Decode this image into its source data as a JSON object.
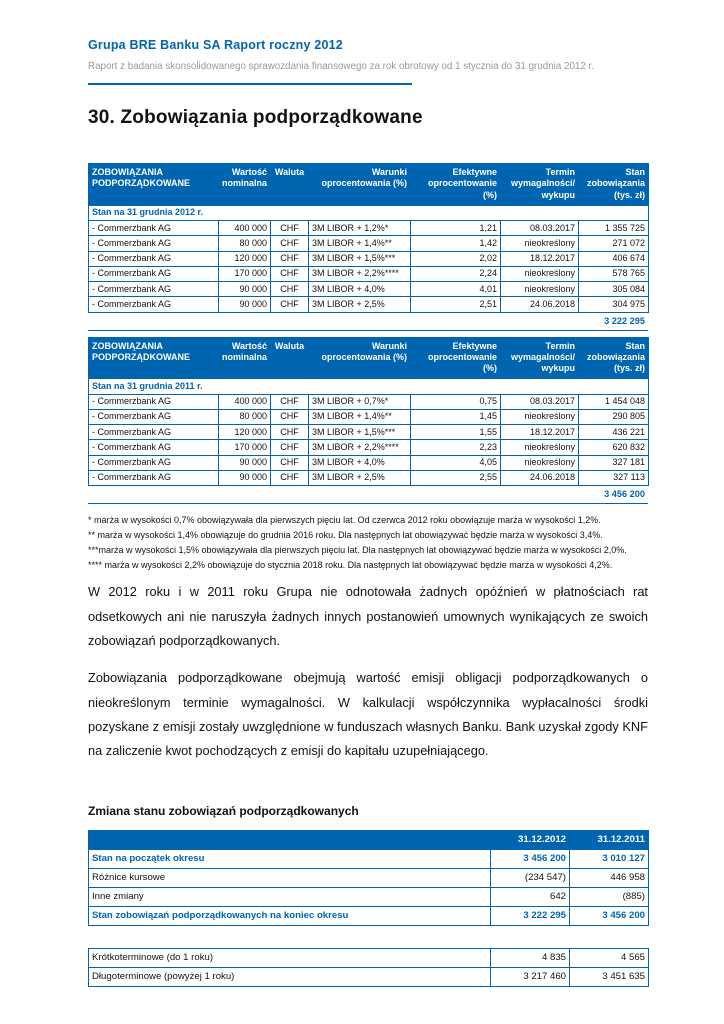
{
  "header": {
    "title": "Grupa BRE Banku SA Raport roczny 2012",
    "subtitle": "Raport z badania skonsolidowanego sprawozdania finansowego za rok obrotowy od 1 stycznia do 31 grudnia 2012 r."
  },
  "title": "30. Zobowiązania podporządkowane",
  "table_columns": [
    "ZOBOWIĄZANIA PODPORZĄDKOWANE",
    "Wartość nominalna",
    "Waluta",
    "Warunki oprocentowania (%)",
    "Efektywne oprocentowanie (%)",
    "Termin wymagalności/ wykupu",
    "Stan zobowiązania (tys. zł)"
  ],
  "table2012": {
    "section": "Stan na 31 grudnia 2012 r.",
    "rows": [
      {
        "name": "- Commerzbank AG",
        "nominal": "400 000",
        "currency": "CHF",
        "terms": "3M LIBOR + 1,2%*",
        "effective": "1,21",
        "maturity": "08.03.2017",
        "balance": "1 355 725"
      },
      {
        "name": "- Commerzbank AG",
        "nominal": "80 000",
        "currency": "CHF",
        "terms": "3M LIBOR + 1,4%**",
        "effective": "1,42",
        "maturity": "nieokreślony",
        "balance": "271 072"
      },
      {
        "name": "- Commerzbank AG",
        "nominal": "120 000",
        "currency": "CHF",
        "terms": "3M LIBOR + 1,5%***",
        "effective": "2,02",
        "maturity": "18.12.2017",
        "balance": "406 674"
      },
      {
        "name": "- Commerzbank AG",
        "nominal": "170 000",
        "currency": "CHF",
        "terms": "3M LIBOR + 2,2%****",
        "effective": "2,24",
        "maturity": "nieokreślony",
        "balance": "578 765"
      },
      {
        "name": "- Commerzbank AG",
        "nominal": "90 000",
        "currency": "CHF",
        "terms": "3M LIBOR + 4,0%",
        "effective": "4,01",
        "maturity": "nieokreślony",
        "balance": "305 084"
      },
      {
        "name": "- Commerzbank AG",
        "nominal": "90 000",
        "currency": "CHF",
        "terms": "3M LIBOR + 2,5%",
        "effective": "2,51",
        "maturity": "24.06.2018",
        "balance": "304 975"
      }
    ],
    "total": "3 222 295"
  },
  "table2011": {
    "section": "Stan na 31 grudnia 2011 r.",
    "rows": [
      {
        "name": "- Commerzbank AG",
        "nominal": "400 000",
        "currency": "CHF",
        "terms": "3M LIBOR + 0,7%*",
        "effective": "0,75",
        "maturity": "08.03.2017",
        "balance": "1 454 048"
      },
      {
        "name": "- Commerzbank AG",
        "nominal": "80 000",
        "currency": "CHF",
        "terms": "3M LIBOR + 1,4%**",
        "effective": "1,45",
        "maturity": "nieokreślony",
        "balance": "290 805"
      },
      {
        "name": "- Commerzbank AG",
        "nominal": "120 000",
        "currency": "CHF",
        "terms": "3M LIBOR + 1,5%***",
        "effective": "1,55",
        "maturity": "18.12.2017",
        "balance": "436 221"
      },
      {
        "name": "- Commerzbank AG",
        "nominal": "170 000",
        "currency": "CHF",
        "terms": "3M LIBOR + 2,2%****",
        "effective": "2,23",
        "maturity": "nieokreślony",
        "balance": "620 832"
      },
      {
        "name": "- Commerzbank AG",
        "nominal": "90 000",
        "currency": "CHF",
        "terms": "3M LIBOR + 4,0%",
        "effective": "4,05",
        "maturity": "nieokreślony",
        "balance": "327 181"
      },
      {
        "name": "- Commerzbank AG",
        "nominal": "90 000",
        "currency": "CHF",
        "terms": "3M LIBOR + 2,5%",
        "effective": "2,55",
        "maturity": "24.06.2018",
        "balance": "327 113"
      }
    ],
    "total": "3 456 200"
  },
  "footnotes": [
    "* marża w wysokości 0,7% obowiązywała dla pierwszych pięciu lat. Od czerwca 2012 roku obowiązuje marża w wysokości 1,2%.",
    "** marża w wysokości 1,4% obowiązuje do grudnia 2016 roku. Dla następnych lat obowiązywać będzie marża w wysokości 3,4%.",
    "***marża w wysokości 1,5% obowiązywała dla pierwszych pięciu lat. Dla następnych lat obowiązywać będzie marża w wysokości 2,0%.",
    "**** marża w wysokości 2,2% obowiązuje do stycznia 2018 roku. Dla następnych lat obowiązywać będzie marża w wysokości 4,2%."
  ],
  "paragraphs": [
    "W 2012 roku i w 2011 roku Grupa nie odnotowała żadnych opóźnień w płatnościach rat odsetkowych ani nie naruszyła żadnych innych postanowień umownych wynikających ze swoich zobowiązań podporządkowanych.",
    "Zobowiązania podporządkowane obejmują wartość emisji obligacji podporządkowanych o nieokreślonym terminie wymagalności. W kalkulacji współczynnika wypłacalności środki pozyskane z emisji zostały uwzględnione w funduszach własnych Banku. Bank uzyskał zgody KNF na zaliczenie kwot pochodzących z emisji do kapitału uzupełniającego."
  ],
  "change_section": {
    "heading": "Zmiana stanu zobowiązań podporządkowanych",
    "col2012": "31.12.2012",
    "col2011": "31.12.2011",
    "rows": [
      {
        "label": "Stan na początek okresu",
        "v2012": "3 456 200",
        "v2011": "3 010 127"
      },
      {
        "label": "Różnice kursowe",
        "v2012": "(234 547)",
        "v2011": "446 958"
      },
      {
        "label": "Inne zmiany",
        "v2012": "642",
        "v2011": "(885)"
      },
      {
        "label": "Stan zobowiązań podporządkowanych na koniec okresu",
        "v2012": "3 222 295",
        "v2011": "3 456 200"
      }
    ],
    "maturity_rows": [
      {
        "label": "Krótkoterminowe (do 1 roku)",
        "v2012": "4 835",
        "v2011": "4 565"
      },
      {
        "label": "Długoterminowe (powyżej 1 roku)",
        "v2012": "3 217 460",
        "v2011": "3 451 635"
      }
    ]
  }
}
